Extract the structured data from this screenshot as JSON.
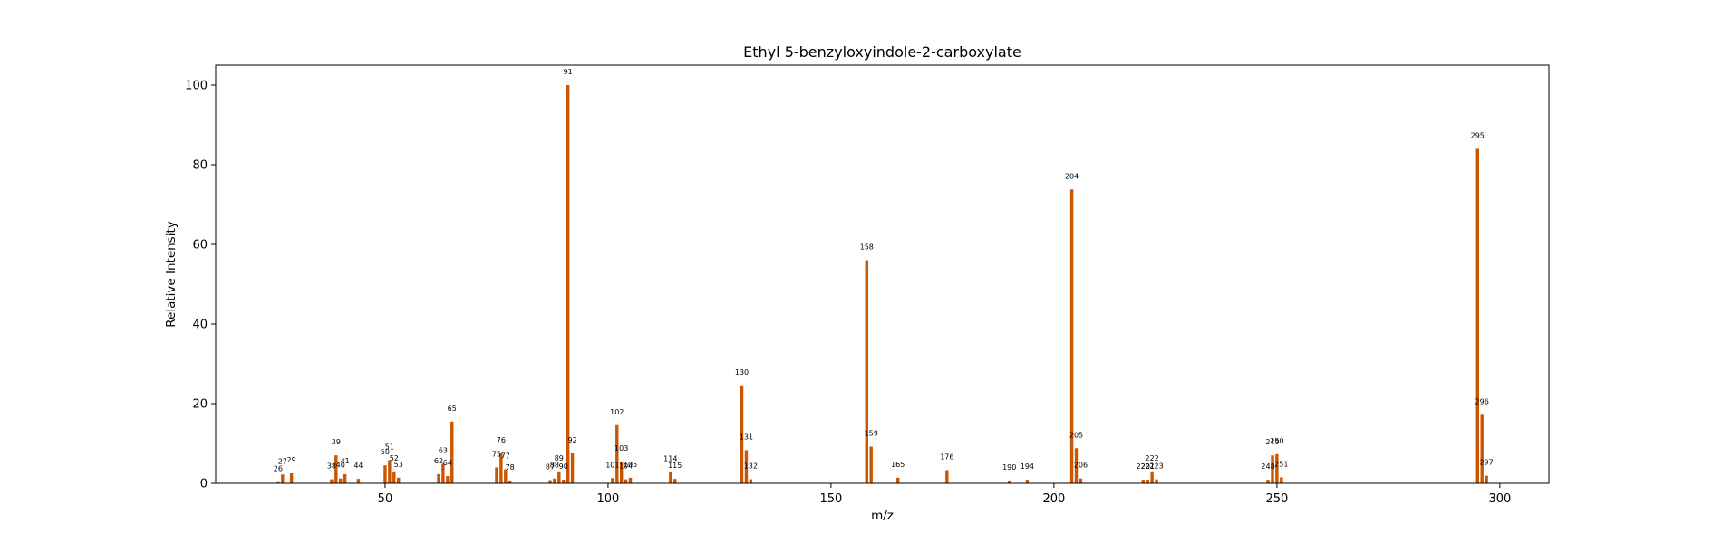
{
  "chart_data": {
    "type": "bar",
    "title": "Ethyl 5-benzyloxyindole-2-carboxylate",
    "xlabel": "m/z",
    "ylabel": "Relative Intensity",
    "xlim": [
      12,
      311
    ],
    "ylim": [
      0,
      105
    ],
    "xticks": [
      50,
      100,
      150,
      200,
      250,
      300
    ],
    "yticks": [
      0,
      20,
      40,
      60,
      80,
      100
    ],
    "bar_color": "#cc5500",
    "grid": false,
    "legend": "none",
    "x": [
      26,
      27,
      29,
      38,
      39,
      40,
      41,
      44,
      50,
      51,
      52,
      53,
      62,
      63,
      64,
      65,
      75,
      76,
      77,
      78,
      87,
      88,
      89,
      90,
      91,
      92,
      101,
      102,
      103,
      104,
      105,
      114,
      115,
      130,
      131,
      132,
      158,
      159,
      165,
      176,
      190,
      194,
      204,
      205,
      206,
      220,
      221,
      222,
      223,
      248,
      249,
      250,
      251,
      295,
      296,
      297
    ],
    "values": [
      0.3,
      2.2,
      2.5,
      1.0,
      7.0,
      1.2,
      2.3,
      1.1,
      4.5,
      5.8,
      3.0,
      1.4,
      2.3,
      4.9,
      1.8,
      15.5,
      4.0,
      7.5,
      3.5,
      0.7,
      0.8,
      1.2,
      3.0,
      0.9,
      100,
      7.5,
      1.3,
      14.6,
      5.4,
      1.0,
      1.4,
      2.8,
      1.1,
      24.6,
      8.3,
      1.0,
      56.0,
      9.2,
      1.4,
      3.3,
      0.7,
      0.9,
      73.8,
      8.8,
      1.2,
      0.9,
      0.9,
      3.0,
      1.0,
      0.9,
      7.0,
      7.3,
      1.5,
      84.0,
      17.2,
      1.9
    ],
    "labels": [
      "26",
      "27",
      "29",
      "38",
      "39",
      "40",
      "41",
      "44",
      "50",
      "51",
      "52",
      "53",
      "62",
      "63",
      "64",
      "65",
      "75",
      "76",
      "77",
      "78",
      "87",
      "88",
      "89",
      "90",
      "91",
      "92",
      "101",
      "102",
      "103",
      "104",
      "105",
      "114",
      "115",
      "130",
      "131",
      "132",
      "158",
      "159",
      "165",
      "176",
      "190",
      "194",
      "204",
      "205",
      "206",
      "220",
      "221",
      "222",
      "223",
      "248",
      "249",
      "250",
      "251",
      "295",
      "296",
      "297"
    ]
  }
}
